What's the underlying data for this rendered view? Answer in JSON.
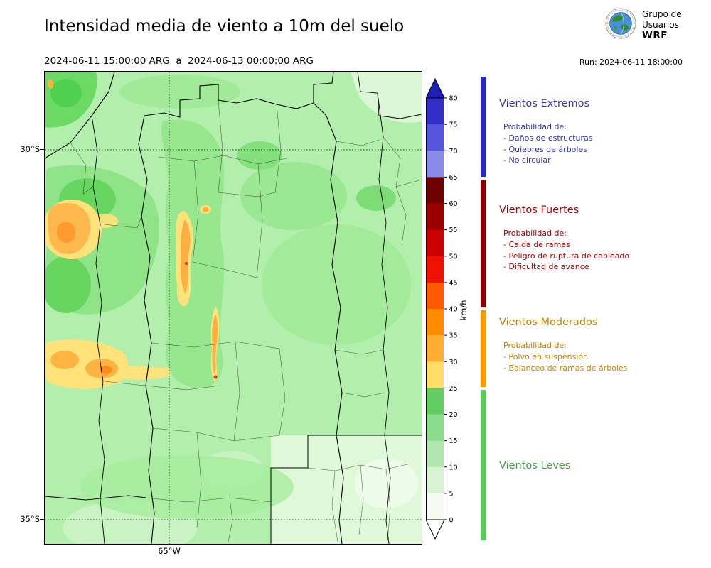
{
  "header": {
    "title": "Intensidad media de viento a 10m del suelo",
    "period": "2024-06-11 15:00:00 ARG  a  2024-06-13 00:00:00 ARG",
    "run": "Run: 2024-06-11 18:00:00",
    "logo_lines": [
      "Grupo de",
      "Usuarios",
      "WRF"
    ]
  },
  "map": {
    "lat_ticks": [
      "30°S",
      "35°S"
    ],
    "lon_ticks": [
      "65°W"
    ]
  },
  "colorbar": {
    "unit": "km/h",
    "ticks_top_to_bottom": [
      80,
      75,
      70,
      65,
      60,
      55,
      50,
      45,
      40,
      35,
      30,
      25,
      20,
      15,
      10,
      5,
      0
    ],
    "over_color": "#1f1fb4",
    "under_color": "#ffffff",
    "segment_colors_top_to_bottom": [
      "#3030c8",
      "#5555dd",
      "#8a8ae8",
      "#6f0000",
      "#9b0000",
      "#c80000",
      "#ee1100",
      "#ff5a00",
      "#ff8c00",
      "#ffae33",
      "#ffdd66",
      "#63cc63",
      "#8adb8a",
      "#b1e7af",
      "#d7f3d4",
      "#f5fbf3"
    ]
  },
  "legend": {
    "sections": [
      {
        "title": "Vientos Extremos",
        "color": "#3333b3",
        "bar_color": "#2a2ac8",
        "subtitle": "Probabilidad de:",
        "items": [
          "- Daños de estructuras",
          "- Quiebres de árboles",
          "- No circular"
        ]
      },
      {
        "title": "Vientos Fuertes",
        "color": "#b30000",
        "bar_color": "#8f0000",
        "subtitle": "Probabilidad de:",
        "items": [
          "- Caida de ramas",
          "- Peligro de ruptura de cableado",
          "- Dificultad de avance"
        ]
      },
      {
        "title": "Vientos Moderados",
        "color": "#c68400",
        "bar_color": "#ff9900",
        "subtitle": "Probabilidad de:",
        "items": [
          "- Polvo en suspensión",
          "- Balanceo de ramas de árboles"
        ]
      },
      {
        "title": "Vientos Leves",
        "color": "#3fa43f",
        "bar_color": "#55cc55",
        "subtitle": "",
        "items": []
      }
    ]
  }
}
